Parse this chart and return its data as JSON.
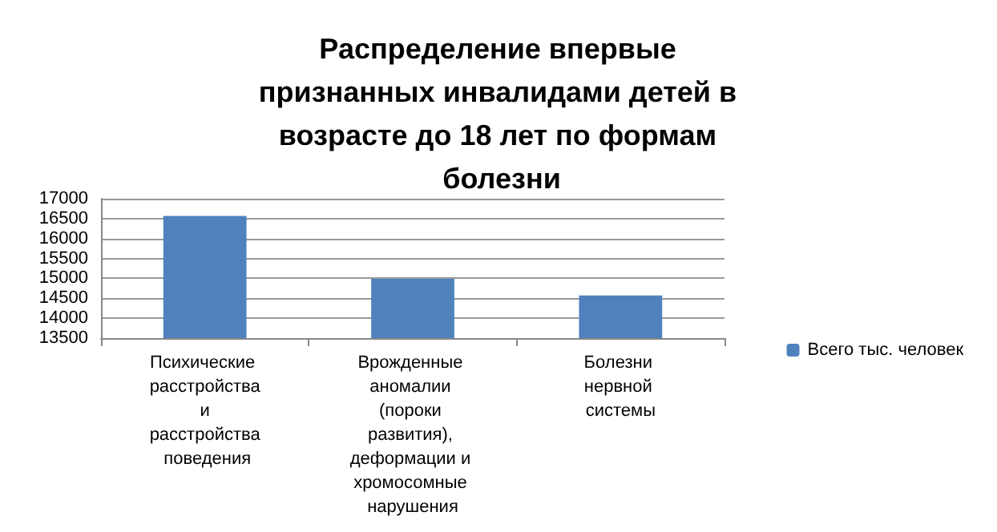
{
  "chart_data": {
    "type": "bar",
    "title": "Распределение впервые признанных инвалидами детей в возрасте до 18 лет по формам болезни",
    "categories": [
      "Психические расстройства и расстройства поведения",
      "Врожденные аномалии (пороки развития), деформации и хромосомные нарушения",
      "Болезни нервной системы"
    ],
    "series": [
      {
        "name": "Всего тыс. человек",
        "color": "#4f81bd",
        "values": [
          16570,
          14990,
          14570
        ]
      }
    ],
    "ylim": [
      13500,
      17000
    ],
    "yticks": [
      13500,
      14000,
      14500,
      15000,
      15500,
      16000,
      16500,
      17000
    ],
    "grid": "y",
    "legend": "right"
  }
}
